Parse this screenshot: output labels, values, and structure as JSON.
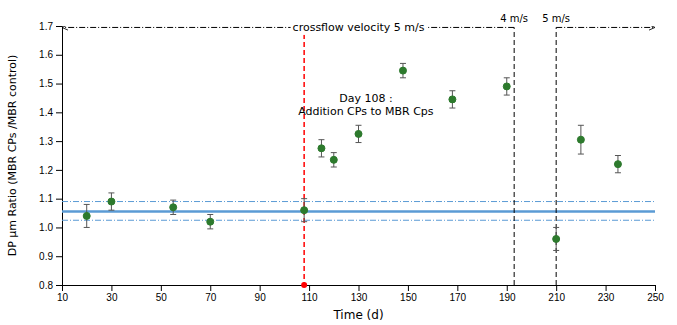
{
  "chart_data": {
    "type": "scatter",
    "xlabel": "Time (d)",
    "ylabel": "DP μm Ratio (MBR CPs /MBR control)",
    "xlim": [
      10,
      250
    ],
    "ylim": [
      0.8,
      1.7
    ],
    "xticks": [
      10,
      30,
      50,
      70,
      90,
      110,
      130,
      150,
      170,
      190,
      210,
      230,
      250
    ],
    "yticks": [
      0.8,
      0.9,
      {
        "value": 1.0,
        "label": "1.0"
      },
      1.1,
      1.2,
      1.3,
      1.4,
      1.5,
      1.6,
      1.7
    ],
    "grid": false,
    "series": [
      {
        "x": [
          20,
          30,
          55,
          70,
          108,
          115,
          120,
          130,
          148,
          168,
          190,
          210,
          220,
          235
        ],
        "values": [
          1.04,
          1.09,
          1.07,
          1.02,
          1.06,
          1.275,
          1.235,
          1.325,
          1.545,
          1.445,
          1.49,
          0.96,
          1.305,
          1.22
        ],
        "error_bars": {
          "values": [
            0.04,
            0.03,
            0.025,
            0.025,
            0.04,
            0.03,
            0.025,
            0.03,
            0.025,
            0.03,
            0.03,
            0.04,
            0.05,
            0.03
          ],
          "color": "#555555"
        },
        "color": "#2d7a2d",
        "marker": "circle"
      }
    ],
    "hlines": [
      {
        "y": 1.055,
        "color": "#5b9bd5",
        "line_style": "solid"
      },
      {
        "y": 1.09,
        "color": "#5b9bd5",
        "line_style": "dashdot"
      },
      {
        "y": 1.025,
        "color": "#5b9bd5",
        "line_style": "dashdot"
      }
    ],
    "vlines": [
      {
        "x": 108,
        "color": "red",
        "line_style": "dashed",
        "marker": "circle"
      }
    ],
    "crossflow": {
      "y": 1.695,
      "text": "crossflow velocity 5 m/s",
      "text_x": 130,
      "segments": [
        {
          "from": 193,
          "to": 10,
          "label": "4 m/s"
        },
        {
          "from": 210,
          "to": 250,
          "label": "5 m/s"
        }
      ]
    },
    "annotations": [
      {
        "text": "Day 108 :\nAddition CPs to MBR Cps",
        "x": 133,
        "y": 1.47
      }
    ]
  }
}
